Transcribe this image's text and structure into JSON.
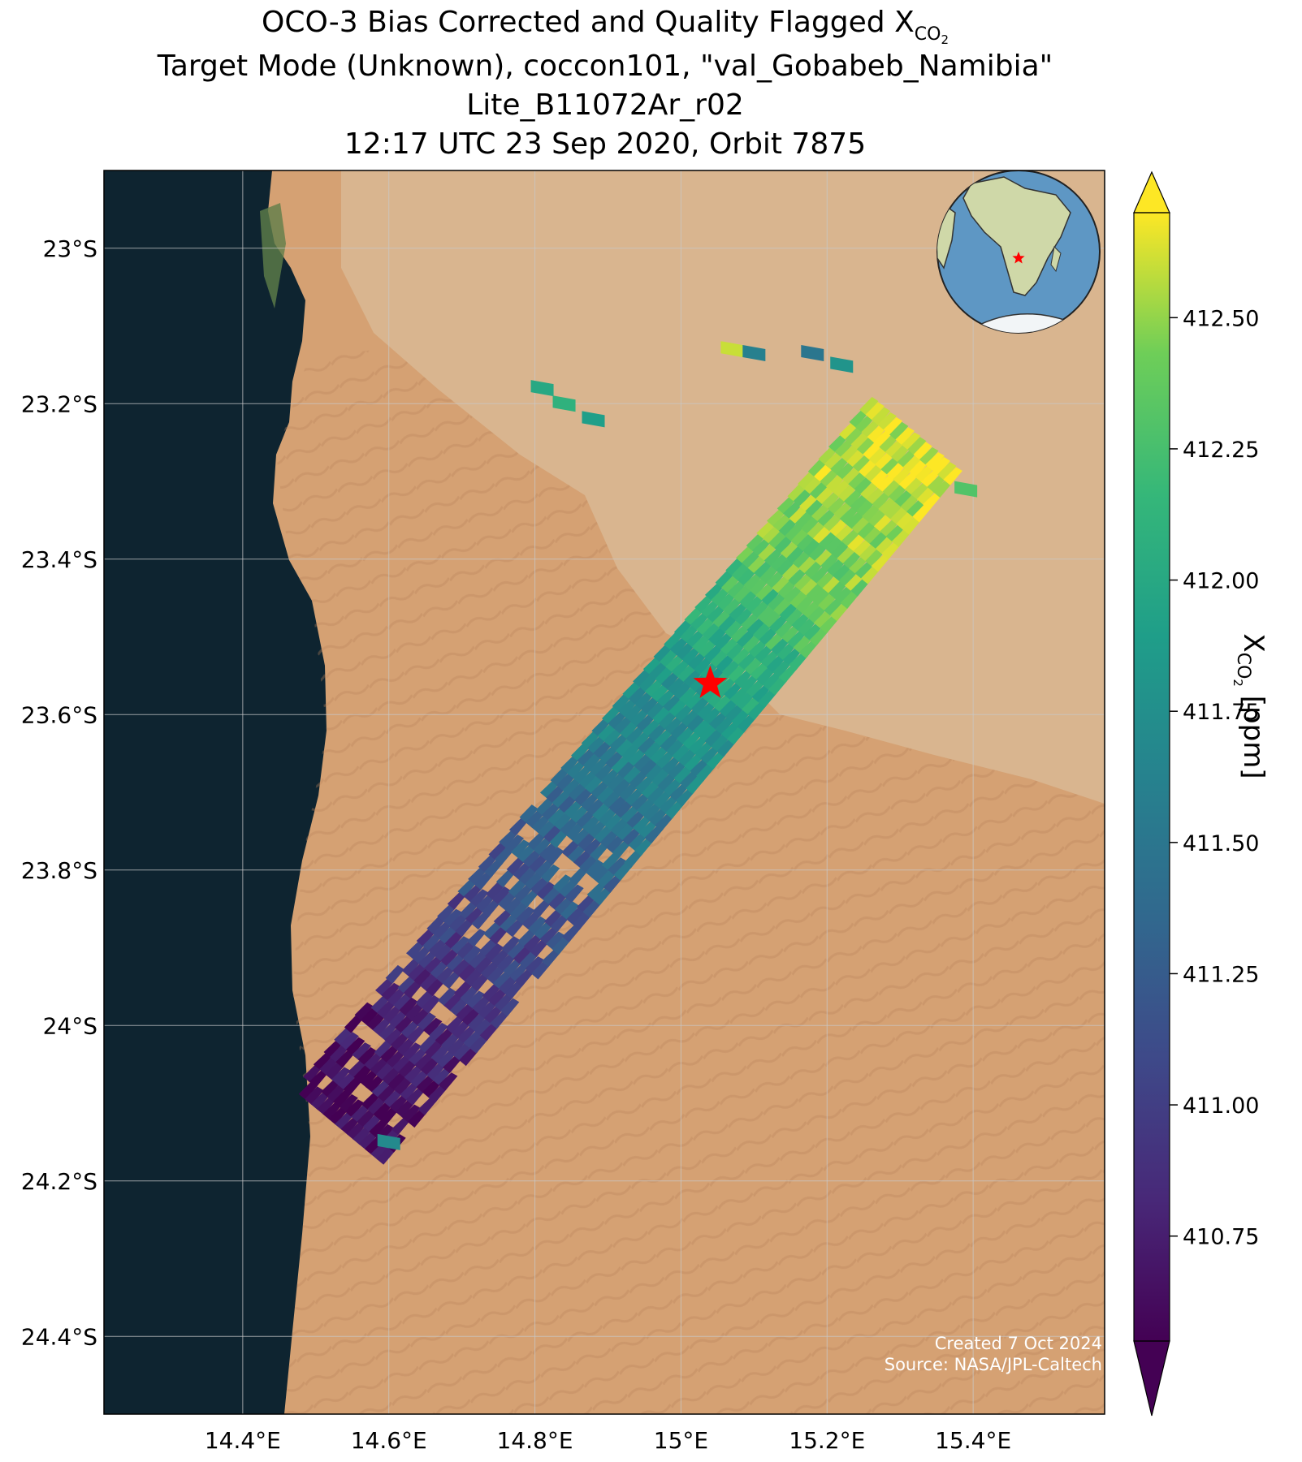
{
  "title": {
    "line1_prefix": "OCO-3 Bias Corrected and Quality Flagged X",
    "line1_sub": "CO",
    "line1_sub2": "2",
    "line2": "Target Mode (Unknown), coccon101, \"val_Gobabeb_Namibia\"",
    "line3": "Lite_B11072Ar_r02",
    "line4": "12:17 UTC 23 Sep 2020, Orbit 7875"
  },
  "map": {
    "lon_range": [
      14.21,
      15.58
    ],
    "lat_range": [
      -24.5,
      -22.9
    ],
    "lon_ticks": [
      {
        "value": 14.4,
        "label": "14.4°E"
      },
      {
        "value": 14.6,
        "label": "14.6°E"
      },
      {
        "value": 14.8,
        "label": "14.8°E"
      },
      {
        "value": 15.0,
        "label": "15°E"
      },
      {
        "value": 15.2,
        "label": "15.2°E"
      },
      {
        "value": 15.4,
        "label": "15.4°E"
      }
    ],
    "lat_ticks": [
      {
        "value": -23.0,
        "label": "23°S"
      },
      {
        "value": -23.2,
        "label": "23.2°S"
      },
      {
        "value": -23.4,
        "label": "23.4°S"
      },
      {
        "value": -23.6,
        "label": "23.6°S"
      },
      {
        "value": -23.8,
        "label": "23.8°S"
      },
      {
        "value": -24.0,
        "label": "24°S"
      },
      {
        "value": -24.2,
        "label": "24.2°S"
      },
      {
        "value": -24.4,
        "label": "24.4°S"
      }
    ],
    "grid": true,
    "site_marker": {
      "lon": 15.04,
      "lat": -23.56,
      "color": "#ff0000"
    },
    "colors": {
      "ocean": "#0e2430",
      "desert": "#d5a173",
      "rocky": "#d9b58f",
      "grid": "#c8c8c8"
    }
  },
  "chart_data": {
    "type": "heatmap",
    "variable": "XCO2",
    "units": "ppm",
    "colormap": "viridis",
    "vmin": 410.55,
    "vmax": 412.7,
    "extend": "both",
    "swath": {
      "start": {
        "lon": 14.53,
        "lat": -24.13
      },
      "end": {
        "lon": 15.32,
        "lat": -23.24
      },
      "values_along_track": [
        410.6,
        410.7,
        410.9,
        411.1,
        411.3,
        411.55,
        411.8,
        412.1,
        412.4,
        412.55,
        412.6
      ]
    },
    "isolated_soundings": [
      {
        "lon": 14.81,
        "lat": -23.18,
        "value": 412.0
      },
      {
        "lon": 14.84,
        "lat": -23.2,
        "value": 412.1
      },
      {
        "lon": 14.88,
        "lat": -23.22,
        "value": 411.9
      },
      {
        "lon": 15.07,
        "lat": -23.13,
        "value": 412.6
      },
      {
        "lon": 15.1,
        "lat": -23.135,
        "value": 411.6
      },
      {
        "lon": 15.18,
        "lat": -23.135,
        "value": 411.5
      },
      {
        "lon": 15.22,
        "lat": -23.15,
        "value": 411.8
      },
      {
        "lon": 15.39,
        "lat": -23.31,
        "value": 412.3
      },
      {
        "lon": 14.6,
        "lat": -24.15,
        "value": 411.7
      }
    ],
    "colorbar": {
      "ticks": [
        410.75,
        411.0,
        411.25,
        411.5,
        411.75,
        412.0,
        412.25,
        412.5
      ],
      "tick_labels": [
        "410.75",
        "411.00",
        "411.25",
        "411.50",
        "411.75",
        "412.00",
        "412.25",
        "412.50"
      ],
      "label_prefix": "X",
      "label_sub": "CO",
      "label_sub2": "2",
      "label_suffix": " [ppm]"
    }
  },
  "inset_globe": {
    "center_lon": 15.0,
    "center_lat": -23.5,
    "marker_color": "#ff0000",
    "ocean_color": "#5e97c4",
    "land_color": "#cfd8a8"
  },
  "credits": {
    "created": "Created 7 Oct 2024",
    "source": "Source: NASA/JPL-Caltech"
  }
}
